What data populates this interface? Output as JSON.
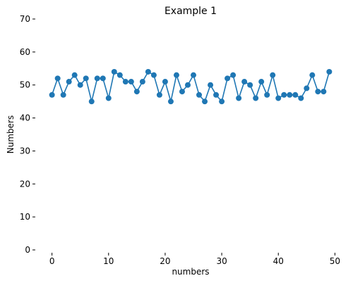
{
  "chart_data": {
    "type": "line",
    "title": "Example 1",
    "xlabel": "numbers",
    "ylabel": "Numbers",
    "xlim": [
      -2.45,
      51.45
    ],
    "ylim": [
      0,
      70
    ],
    "xticks": [
      0,
      10,
      20,
      30,
      40,
      50
    ],
    "yticks": [
      0,
      10,
      20,
      30,
      40,
      50,
      60,
      70
    ],
    "grid": false,
    "legend": "none",
    "x": [
      0,
      1,
      2,
      3,
      4,
      5,
      6,
      7,
      8,
      9,
      10,
      11,
      12,
      13,
      14,
      15,
      16,
      17,
      18,
      19,
      20,
      21,
      22,
      23,
      24,
      25,
      26,
      27,
      28,
      29,
      30,
      31,
      32,
      33,
      34,
      35,
      36,
      37,
      38,
      39,
      40,
      41,
      42,
      43,
      44,
      45,
      46,
      47,
      48,
      49
    ],
    "series": [
      {
        "values": [
          47,
          52,
          47,
          51,
          53,
          50,
          52,
          45,
          52,
          52,
          46,
          54,
          53,
          51,
          51,
          48,
          51,
          54,
          53,
          47,
          51,
          45,
          53,
          48,
          50,
          53,
          47,
          45,
          50,
          47,
          45,
          52,
          53,
          46,
          51,
          50,
          46,
          51,
          47,
          53,
          46,
          47,
          47,
          47,
          46,
          49,
          53,
          48,
          48,
          54
        ],
        "color": "#1f77b4"
      }
    ]
  }
}
